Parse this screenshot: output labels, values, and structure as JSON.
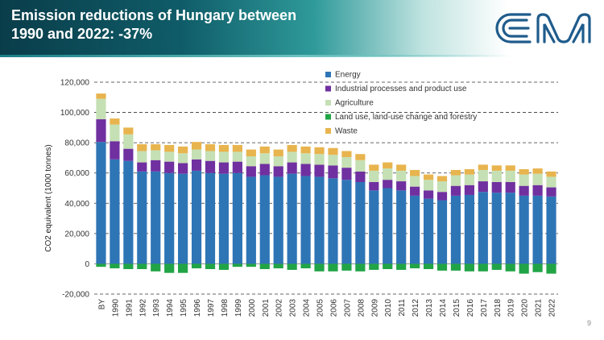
{
  "header": {
    "title_line1": "Emission reductions of Hungary between",
    "title_line2": "1990 and 2022: -37%"
  },
  "page_number": "9",
  "colors": {
    "energy": "#2e75b6",
    "industrial": "#7030a0",
    "agriculture": "#c5e0b4",
    "lulucf": "#21a446",
    "waste": "#e8b44e",
    "logo": "#1f5c8c"
  },
  "logo": {
    "icon": "em-logo"
  },
  "chart_data": {
    "type": "bar",
    "stacked": true,
    "title": "",
    "ylabel": "CO2 equivalent (1000 tonnes)",
    "xlabel": "",
    "ylim": [
      -20000,
      120000
    ],
    "yticks": [
      -20000,
      0,
      20000,
      40000,
      60000,
      80000,
      100000,
      120000
    ],
    "ytick_labels": [
      "-20,000",
      "0",
      "20,000",
      "40,000",
      "60,000",
      "80,000",
      "100,000",
      "120,000"
    ],
    "gridlines": "dashed",
    "legend_position": "top-right",
    "categories": [
      "BY",
      "1990",
      "1991",
      "1992",
      "1993",
      "1994",
      "1995",
      "1996",
      "1997",
      "1998",
      "1999",
      "2000",
      "2001",
      "2002",
      "2003",
      "2004",
      "2005",
      "2006",
      "2007",
      "2008",
      "2009",
      "2010",
      "2011",
      "2012",
      "2013",
      "2014",
      "2015",
      "2016",
      "2017",
      "2018",
      "2019",
      "2020",
      "2021",
      "2022"
    ],
    "series": [
      {
        "name": "Energy",
        "key": "energy",
        "values": [
          80500,
          69000,
          68000,
          61000,
          61000,
          60000,
          59500,
          61500,
          60000,
          59500,
          60000,
          57500,
          58500,
          57500,
          59500,
          58000,
          57500,
          56500,
          55500,
          54000,
          48500,
          50000,
          48500,
          45000,
          43000,
          42000,
          45000,
          45500,
          47500,
          47000,
          47000,
          45000,
          45000,
          44500
        ]
      },
      {
        "name": "Industrial processes and product use",
        "key": "industrial",
        "values": [
          15000,
          12000,
          8000,
          6000,
          7500,
          7500,
          7000,
          7500,
          8000,
          7500,
          7500,
          7000,
          7500,
          7000,
          7500,
          8000,
          8000,
          8500,
          8000,
          7000,
          5500,
          5500,
          6000,
          6000,
          5500,
          5500,
          6500,
          6500,
          7000,
          7000,
          7000,
          6500,
          7000,
          6000
        ]
      },
      {
        "name": "Agriculture",
        "key": "agriculture",
        "values": [
          13500,
          11000,
          9500,
          7500,
          6500,
          6500,
          6500,
          6500,
          6500,
          7000,
          6500,
          6500,
          7000,
          6500,
          7000,
          7000,
          7000,
          7000,
          7000,
          7500,
          7500,
          7500,
          7000,
          7000,
          7000,
          7000,
          7000,
          7000,
          7500,
          7500,
          7500,
          7500,
          7500,
          7000
        ]
      },
      {
        "name": "Land use, land-use change and forestry",
        "key": "lulucf",
        "values": [
          -2000,
          -3000,
          -3500,
          -3500,
          -5000,
          -6000,
          -6000,
          -3000,
          -3500,
          -4000,
          -2000,
          -2000,
          -3500,
          -3000,
          -4000,
          -3000,
          -5000,
          -5000,
          -4500,
          -5000,
          -4000,
          -3500,
          -4000,
          -3000,
          -3500,
          -4500,
          -4500,
          -5000,
          -5000,
          -4000,
          -5000,
          -6500,
          -5500,
          -6500
        ]
      },
      {
        "name": "Waste",
        "key": "waste",
        "values": [
          3500,
          4000,
          4500,
          4500,
          4000,
          4500,
          4500,
          5000,
          4500,
          4500,
          4500,
          4500,
          4500,
          4500,
          4500,
          4500,
          4500,
          4500,
          4000,
          4000,
          4000,
          4000,
          4000,
          4000,
          3500,
          3500,
          3500,
          3500,
          3500,
          3500,
          3500,
          3500,
          3500,
          3500
        ]
      }
    ]
  }
}
